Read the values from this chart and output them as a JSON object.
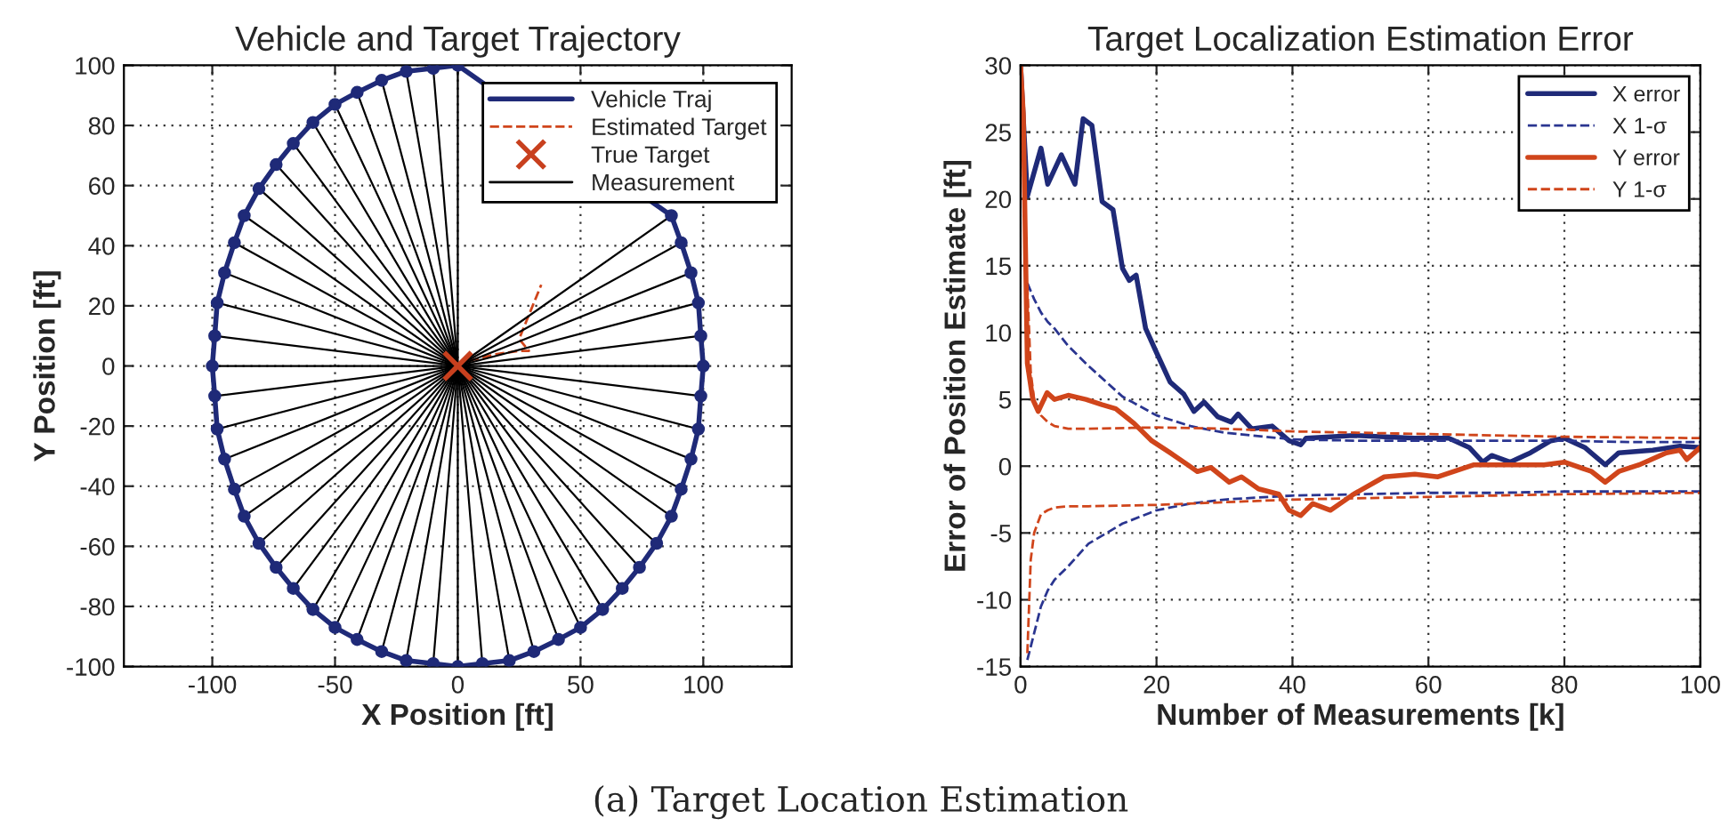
{
  "chart_data": [
    {
      "type": "line",
      "title": "Vehicle and Target Trajectory",
      "xlabel": "X Position [ft]",
      "ylabel": "Y Position [ft]",
      "xlim": [
        -136,
        136
      ],
      "xticks": [
        -100,
        -50,
        0,
        50,
        100
      ],
      "ylim": [
        -100,
        100
      ],
      "yticks": [
        -100,
        -80,
        -60,
        -40,
        -20,
        0,
        20,
        40,
        60,
        80,
        100
      ],
      "grid": true,
      "legend": "top right",
      "annotations": [
        "(a) Target Location Estimation"
      ],
      "series": [
        {
          "name": "Vehicle Traj",
          "type": "scatter",
          "color": "#1f2a78",
          "marker": "circle",
          "line_style": "solid",
          "x": [
            100,
            99,
            98,
            95,
            91,
            87,
            81,
            74,
            67,
            59,
            50,
            41,
            31,
            21,
            10,
            0,
            -10,
            -21,
            -31,
            -41,
            -50,
            -59,
            -67,
            -74,
            -81,
            -87,
            -91,
            -95,
            -98,
            -99,
            -100,
            -99,
            -98,
            -95,
            -91,
            -87,
            -81,
            -74,
            -67,
            -59,
            -50,
            -41,
            -31,
            -21,
            -10,
            0,
            10,
            21,
            31,
            41,
            50,
            59,
            67,
            74,
            81,
            87,
            91,
            95,
            98,
            99
          ],
          "values": [
            0,
            10,
            21,
            31,
            41,
            50,
            null,
            null,
            null,
            null,
            null,
            null,
            null,
            null,
            null,
            100,
            99,
            98,
            95,
            91,
            87,
            81,
            74,
            67,
            59,
            50,
            41,
            31,
            21,
            10,
            0,
            -10,
            -21,
            -31,
            -41,
            -50,
            -59,
            -67,
            -74,
            -81,
            -87,
            -91,
            -95,
            -98,
            -99,
            -100,
            -99,
            -98,
            -95,
            -91,
            -87,
            -81,
            -74,
            -67,
            -59,
            -50,
            -41,
            -31,
            -21,
            -10
          ]
        },
        {
          "name": "Estimated Target",
          "color": "#d0451b",
          "line_style": "dashed",
          "x": [
            0,
            6,
            16,
            25,
            29,
            25,
            28,
            34
          ],
          "values": [
            0,
            2,
            4,
            5,
            5,
            9,
            15,
            27
          ]
        },
        {
          "name": "True Target",
          "type": "scatter",
          "color": "#c8401e",
          "marker": "cross",
          "x": [
            0
          ],
          "values": [
            0
          ]
        },
        {
          "name": "Measurement",
          "type": "line",
          "color": "#000000",
          "line_style": "solid"
        }
      ]
    },
    {
      "type": "line",
      "title": "Target Localization Estimation Error",
      "xlabel": "Number of Measurements [k]",
      "ylabel": "Error of Position Estimate [ft]",
      "xlim": [
        0,
        100
      ],
      "xticks": [
        0,
        20,
        40,
        60,
        80,
        100
      ],
      "ylim": [
        -15,
        30
      ],
      "yticks": [
        -15,
        -10,
        -5,
        0,
        5,
        10,
        15,
        20,
        25,
        30
      ],
      "grid": true,
      "legend": "top right",
      "series": [
        {
          "name": "X error",
          "color": "#1f2a78",
          "line_style": "solid",
          "x": [
            0,
            1,
            3,
            4,
            6,
            8,
            9.2,
            10.5,
            12,
            13.6,
            15,
            16,
            17,
            18.4,
            20,
            22,
            24,
            25.5,
            27,
            29,
            31,
            32,
            34,
            37,
            39.5,
            41.2,
            42,
            49,
            58,
            63,
            66,
            68,
            69.3,
            72,
            75,
            78,
            80,
            83,
            86,
            88,
            93,
            97,
            100
          ],
          "values": [
            30,
            20.2,
            23.8,
            21.1,
            23.3,
            21.1,
            26,
            25.5,
            19.8,
            19.2,
            14.8,
            13.9,
            14.3,
            10.3,
            8.5,
            6.3,
            5.4,
            4.1,
            4.8,
            3.7,
            3.3,
            3.9,
            2.8,
            3.0,
            1.9,
            1.6,
            2.1,
            2.3,
            2.1,
            2.1,
            1.4,
            0.3,
            0.8,
            0.3,
            1.0,
            1.9,
            2.1,
            1.4,
            0.1,
            1.0,
            1.2,
            1.5,
            1.4
          ]
        },
        {
          "name": "X 1-σ",
          "color": "#2a3590",
          "line_style": "dashed",
          "x": [
            1,
            2,
            3,
            4,
            5,
            7,
            10,
            15,
            20,
            25,
            30,
            40,
            50,
            60,
            70,
            80,
            90,
            100
          ],
          "values": [
            13.7,
            12.5,
            11.5,
            10.8,
            10.3,
            9,
            7.5,
            5.2,
            3.8,
            3.0,
            2.5,
            2.0,
            1.9,
            1.9,
            1.9,
            1.9,
            1.8,
            1.8
          ]
        },
        {
          "color": "#2a3590",
          "line_style": "dashed",
          "x": [
            1,
            2,
            3,
            4,
            5,
            7,
            10,
            15,
            20,
            25,
            30,
            40,
            50,
            60,
            70,
            80,
            90,
            100
          ],
          "values": [
            -14.5,
            -12.5,
            -10.5,
            -9.3,
            -8.5,
            -7.5,
            -5.8,
            -4.3,
            -3.3,
            -2.8,
            -2.5,
            -2.2,
            -2.1,
            -2.0,
            -2.0,
            -1.9,
            -1.9,
            -1.9
          ]
        },
        {
          "name": "Y error",
          "color": "#d0451b",
          "line_style": "solid",
          "x": [
            0,
            0.4,
            1,
            1.8,
            2.6,
            3.9,
            5,
            7,
            9.6,
            12,
            14,
            16.7,
            19.3,
            22,
            24.6,
            26,
            28,
            30.7,
            32.5,
            35,
            38,
            39.5,
            41.2,
            43,
            45.6,
            49,
            53.5,
            58,
            61.4,
            66.7,
            72,
            77,
            80,
            84,
            86,
            88,
            91,
            95,
            97,
            98,
            100
          ],
          "values": [
            30,
            26.4,
            7.7,
            5,
            4.1,
            5.5,
            5,
            5.3,
            5,
            4.6,
            4.3,
            3.2,
            1.9,
            1,
            0.1,
            -0.4,
            -0.1,
            -1.2,
            -0.8,
            -1.7,
            -2.1,
            -3.3,
            -3.7,
            -2.8,
            -3.3,
            -2.1,
            -0.8,
            -0.6,
            -0.8,
            0.1,
            0.1,
            0.1,
            0.3,
            -0.4,
            -1.2,
            -0.4,
            0.1,
            1,
            1.2,
            0.5,
            1.4
          ]
        },
        {
          "name": "Y 1-σ",
          "color": "#d0451b",
          "line_style": "dashed",
          "x": [
            1,
            1.5,
            2,
            3,
            4,
            5,
            7,
            10,
            20,
            30,
            40,
            60,
            80,
            100
          ],
          "values": [
            13.5,
            7,
            5,
            3.8,
            3.3,
            3.0,
            2.8,
            2.8,
            2.9,
            2.8,
            2.6,
            2.4,
            2.2,
            2.1
          ]
        },
        {
          "color": "#d0451b",
          "line_style": "dashed",
          "x": [
            1,
            1.5,
            2,
            3,
            4,
            5,
            7,
            10,
            20,
            30,
            40,
            60,
            80,
            100
          ],
          "values": [
            -14,
            -7,
            -5,
            -3.6,
            -3.3,
            -3.1,
            -3.0,
            -3.0,
            -2.9,
            -2.7,
            -2.5,
            -2.3,
            -2.1,
            -2.0
          ]
        }
      ]
    }
  ]
}
